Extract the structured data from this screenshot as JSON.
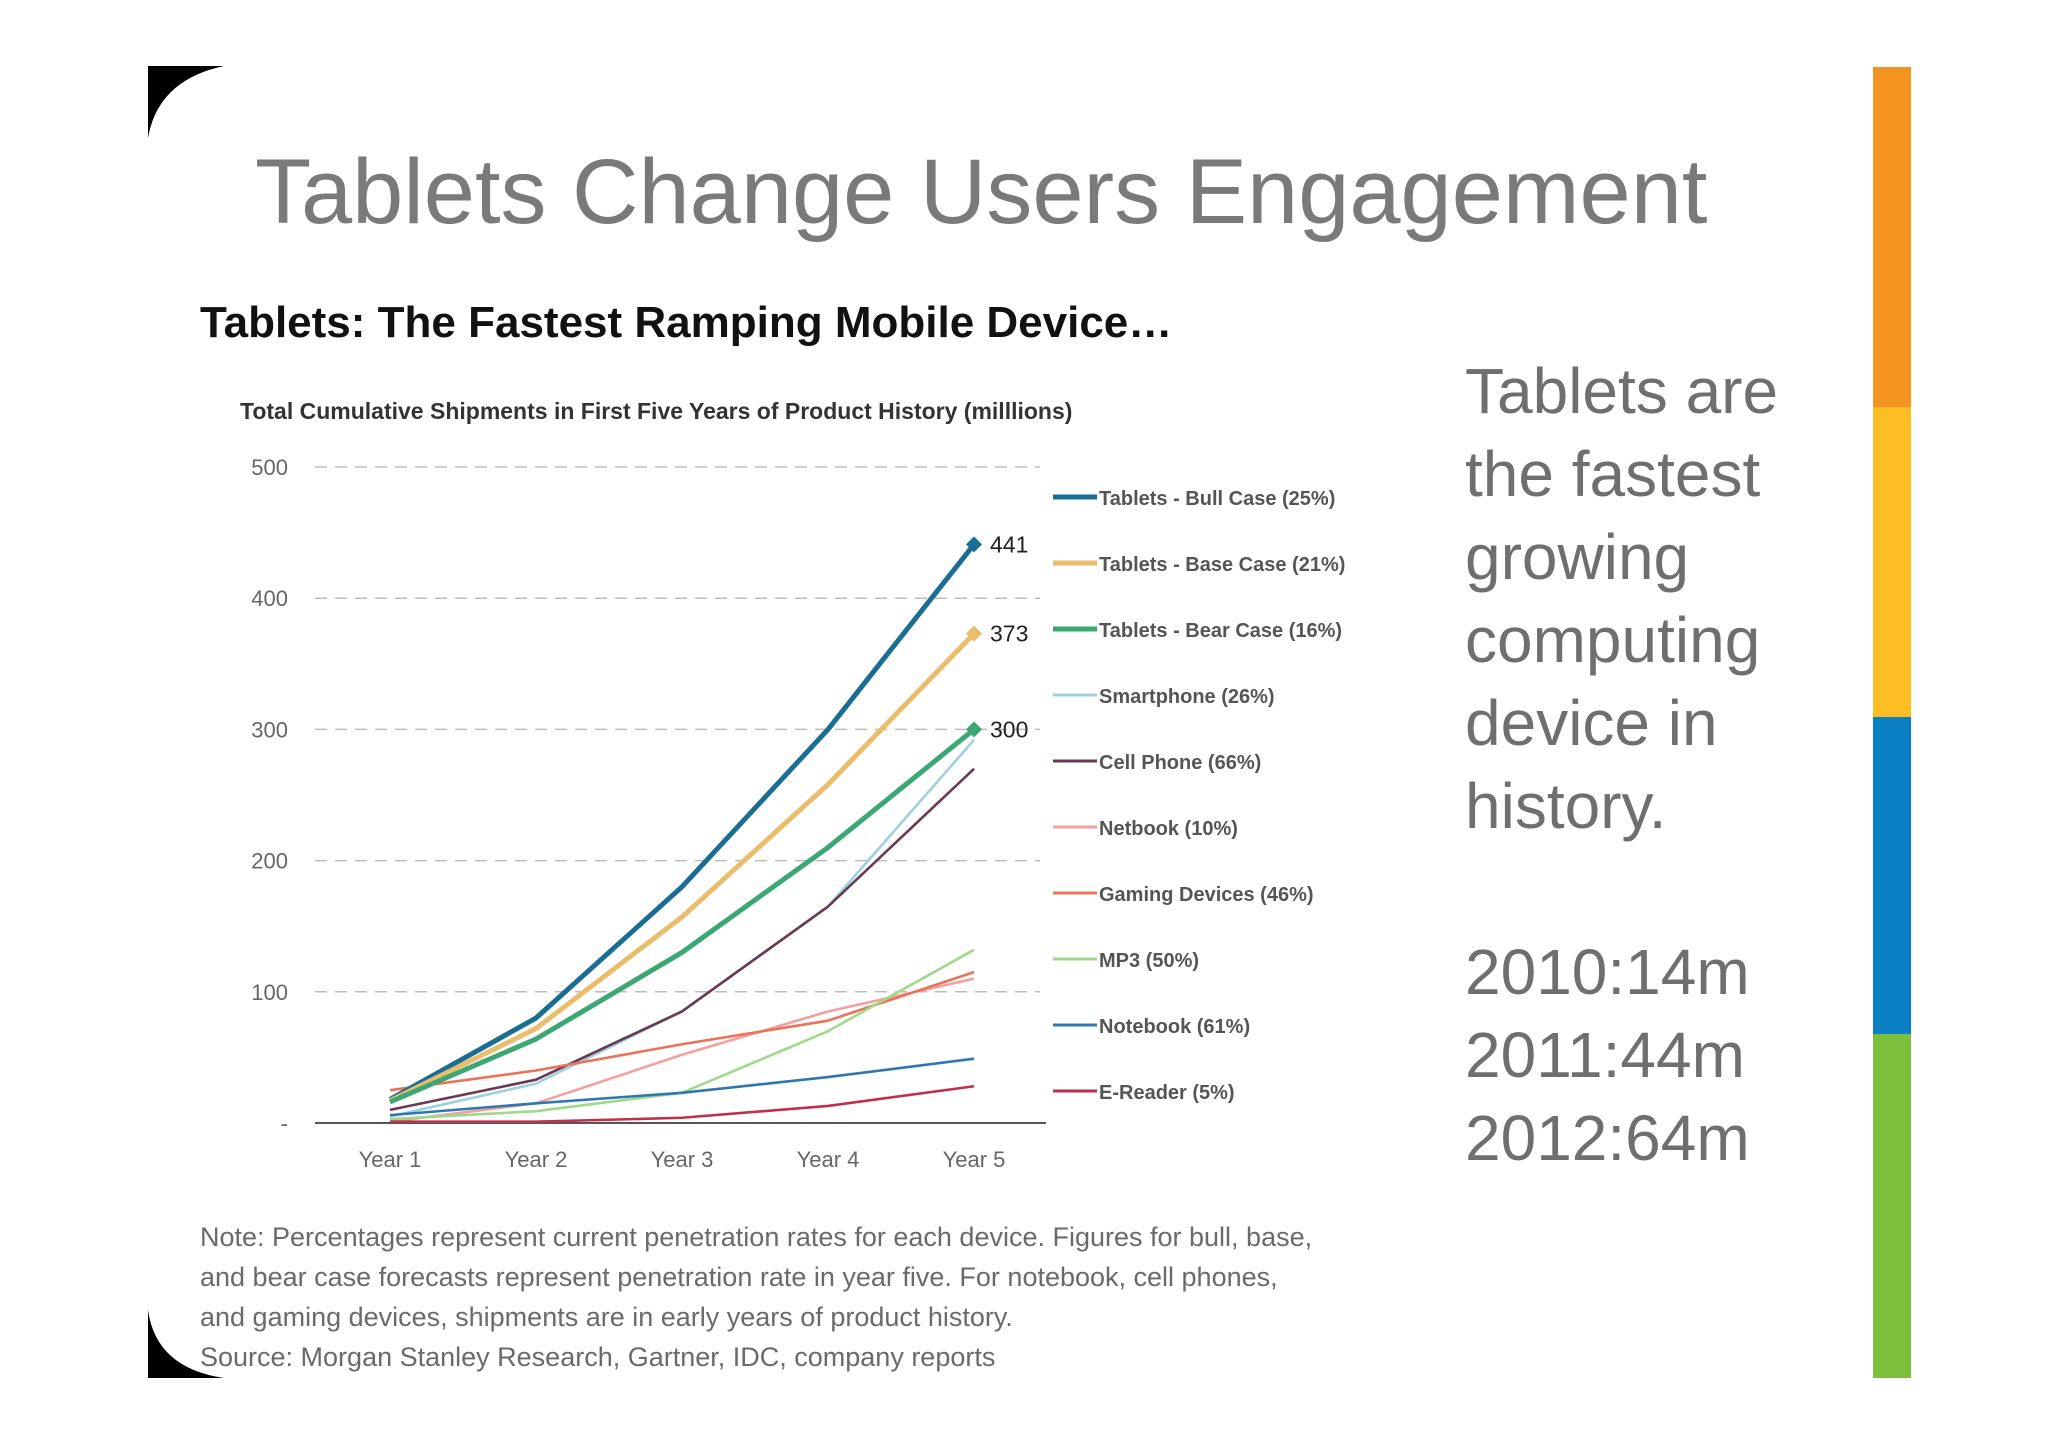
{
  "slide": {
    "title": "Tablets Change Users Engagement",
    "chart_heading": "Tablets: The Fastest Ramping Mobile Device…",
    "side_text": [
      "Tablets are",
      "the fastest",
      "growing",
      "computing",
      "device in",
      "history."
    ],
    "side_stats": [
      "2010:14m",
      "2011:44m",
      "2012:64m"
    ],
    "note_lines": [
      "Note: Percentages represent current penetration rates for each device. Figures for bull, base,",
      "and bear case forecasts represent penetration rate in year five. For notebook, cell phones,",
      "and gaming devices, shipments are in early years of product history.",
      "Source: Morgan Stanley Research, Gartner, IDC, company reports"
    ],
    "stripe_colors": [
      "#f39320",
      "#fdbe24",
      "#0a7fc4",
      "#7bbf3c"
    ]
  },
  "chart_data": {
    "type": "line",
    "title": "Total Cumulative Shipments in First Five Years of Product History (milllions)",
    "categories": [
      "Year 1",
      "Year 2",
      "Year 3",
      "Year 4",
      "Year 5"
    ],
    "ylim": [
      0,
      500
    ],
    "yticks": [
      {
        "value": 0,
        "label": "-"
      },
      {
        "value": 100,
        "label": "100"
      },
      {
        "value": 200,
        "label": "200"
      },
      {
        "value": 300,
        "label": "300"
      },
      {
        "value": 400,
        "label": "400"
      },
      {
        "value": 500,
        "label": "500"
      }
    ],
    "grid": "horizontal dashed",
    "legend_position": "right",
    "series": [
      {
        "name": "Tablets - Bull Case (25%)",
        "color": "#1b6e93",
        "weight": "bold",
        "marker_last": "diamond",
        "end_label": "441",
        "values": [
          18,
          80,
          180,
          300,
          441
        ]
      },
      {
        "name": "Tablets - Base Case (21%)",
        "color": "#e9bd6b",
        "weight": "bold",
        "marker_last": "diamond",
        "end_label": "373",
        "values": [
          17,
          72,
          157,
          258,
          373
        ]
      },
      {
        "name": "Tablets - Bear Case (16%)",
        "color": "#3ba874",
        "weight": "bold",
        "marker_last": "diamond",
        "end_label": "300",
        "values": [
          16,
          64,
          130,
          210,
          300
        ]
      },
      {
        "name": "Smartphone (26%)",
        "color": "#9fd0e0",
        "weight": "normal",
        "values": [
          5,
          30,
          85,
          165,
          292
        ]
      },
      {
        "name": "Cell Phone (66%)",
        "color": "#6b3a52",
        "weight": "normal",
        "values": [
          10,
          33,
          85,
          165,
          270
        ]
      },
      {
        "name": "Netbook (10%)",
        "color": "#f2a0a0",
        "weight": "normal",
        "values": [
          1,
          15,
          52,
          85,
          110
        ]
      },
      {
        "name": "Gaming Devices (46%)",
        "color": "#ea7358",
        "weight": "normal",
        "values": [
          25,
          40,
          60,
          78,
          115
        ]
      },
      {
        "name": "MP3 (50%)",
        "color": "#9fd98a",
        "weight": "normal",
        "values": [
          3,
          9,
          23,
          70,
          132
        ]
      },
      {
        "name": "Notebook (61%)",
        "color": "#2e78b2",
        "weight": "normal",
        "values": [
          6,
          15,
          23,
          35,
          49
        ]
      },
      {
        "name": "E-Reader (5%)",
        "color": "#c0304a",
        "weight": "normal",
        "values": [
          1,
          1,
          4,
          13,
          28
        ]
      }
    ]
  }
}
